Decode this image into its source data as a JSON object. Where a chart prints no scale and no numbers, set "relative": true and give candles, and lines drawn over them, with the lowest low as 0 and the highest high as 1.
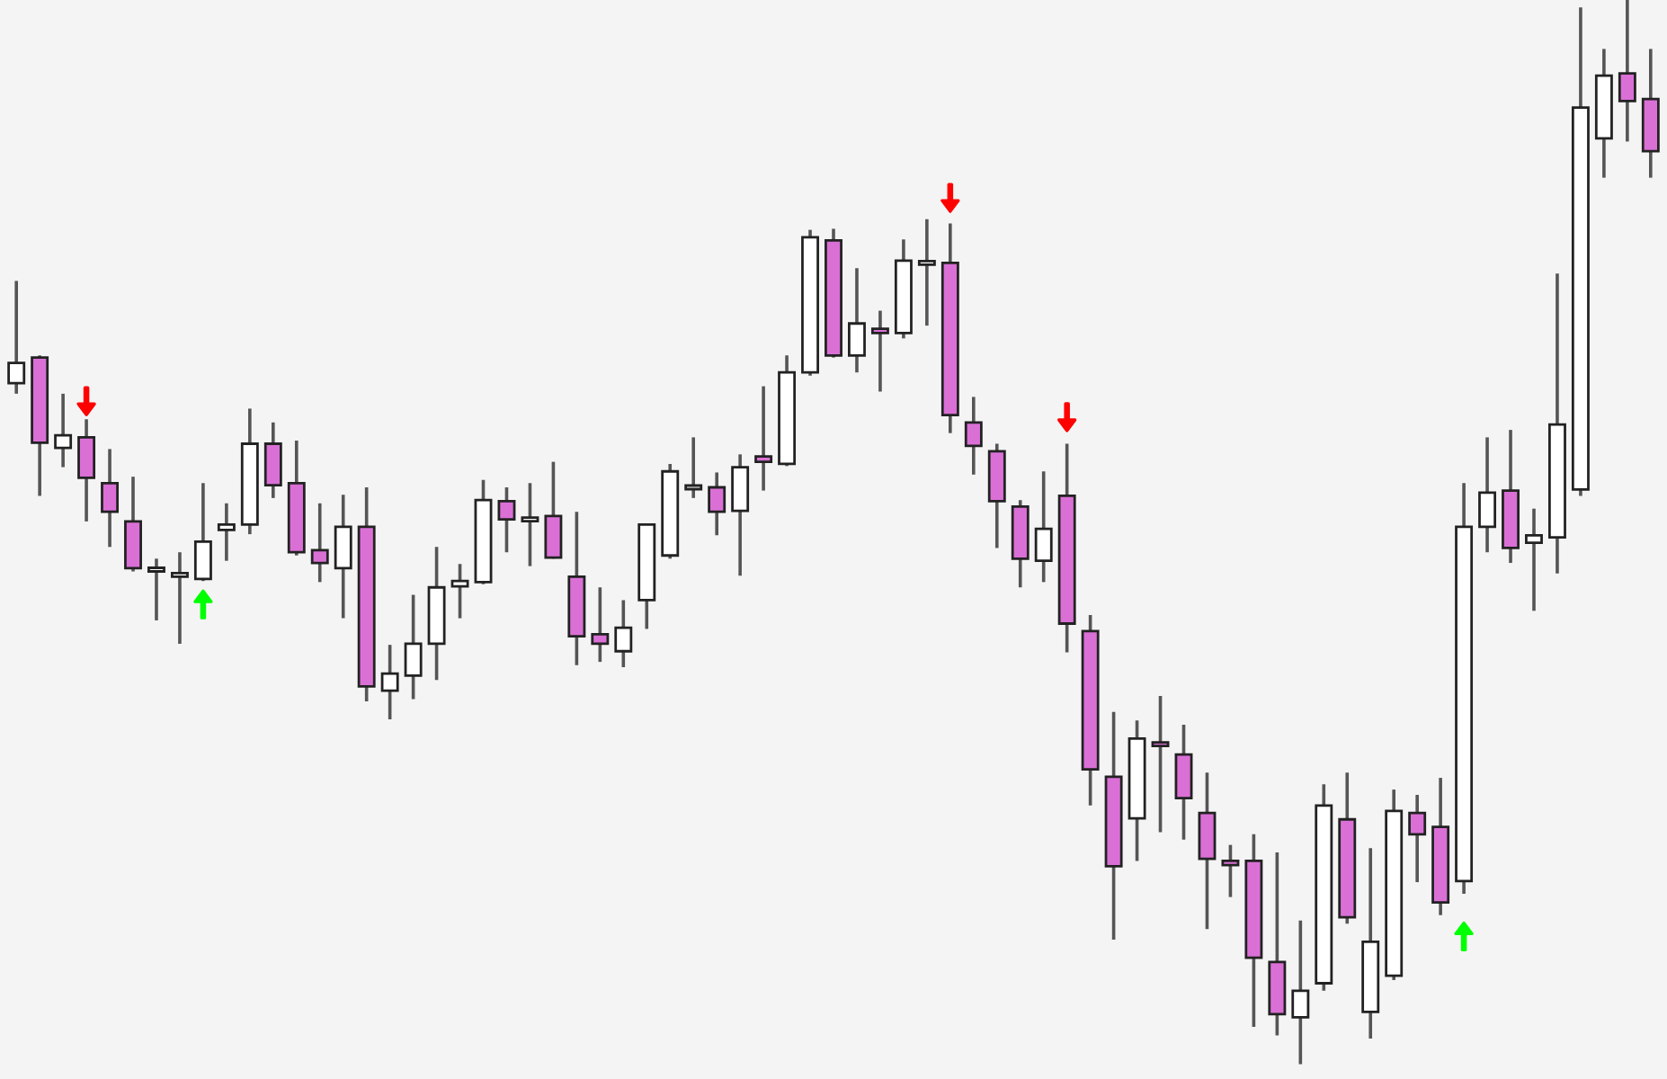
{
  "chart_data": {
    "type": "candlestick",
    "relative": true,
    "categories": [
      null,
      null,
      null,
      null,
      null,
      null,
      null,
      null,
      null,
      null,
      null,
      null,
      null,
      null,
      null,
      null,
      null,
      null,
      null,
      null,
      null,
      null,
      null,
      null,
      null,
      null,
      null,
      null,
      null,
      null,
      null,
      null,
      null,
      null,
      null,
      null,
      null,
      null,
      null,
      null,
      null,
      null,
      null,
      null,
      null,
      null,
      null,
      null,
      null,
      null,
      null,
      null,
      null,
      null,
      null,
      null,
      null,
      null,
      null,
      null,
      null,
      null,
      null,
      null,
      null,
      null,
      null,
      null,
      null,
      null,
      null
    ],
    "ohlc": [
      [
        0.64,
        0.736,
        0.63,
        0.659
      ],
      [
        0.664,
        0.666,
        0.534,
        0.584
      ],
      [
        0.579,
        0.63,
        0.561,
        0.591
      ],
      [
        0.589,
        0.606,
        0.51,
        0.551
      ],
      [
        0.546,
        0.578,
        0.486,
        0.519
      ],
      [
        0.51,
        0.552,
        0.463,
        0.466
      ],
      [
        0.463,
        0.475,
        0.417,
        0.466
      ],
      [
        0.458,
        0.481,
        0.395,
        0.459
      ],
      [
        0.456,
        0.546,
        0.454,
        0.491
      ],
      [
        0.502,
        0.527,
        0.473,
        0.507
      ],
      [
        0.507,
        0.616,
        0.498,
        0.583
      ],
      [
        0.583,
        0.603,
        0.532,
        0.544
      ],
      [
        0.546,
        0.586,
        0.478,
        0.481
      ],
      [
        0.483,
        0.527,
        0.453,
        0.471
      ],
      [
        0.466,
        0.535,
        0.419,
        0.505
      ],
      [
        0.505,
        0.542,
        0.341,
        0.355
      ],
      [
        0.351,
        0.394,
        0.324,
        0.367
      ],
      [
        0.365,
        0.441,
        0.343,
        0.395
      ],
      [
        0.395,
        0.486,
        0.361,
        0.448
      ],
      [
        0.449,
        0.47,
        0.419,
        0.454
      ],
      [
        0.453,
        0.549,
        0.451,
        0.53
      ],
      [
        0.529,
        0.542,
        0.481,
        0.512
      ],
      [
        0.512,
        0.546,
        0.468,
        0.512
      ],
      [
        0.515,
        0.566,
        0.475,
        0.476
      ],
      [
        0.458,
        0.519,
        0.375,
        0.402
      ],
      [
        0.404,
        0.448,
        0.378,
        0.395
      ],
      [
        0.388,
        0.436,
        0.373,
        0.41
      ],
      [
        0.436,
        0.508,
        0.409,
        0.507
      ],
      [
        0.478,
        0.564,
        0.475,
        0.557
      ],
      [
        0.542,
        0.589,
        0.532,
        0.542
      ],
      [
        0.542,
        0.556,
        0.497,
        0.519
      ],
      [
        0.52,
        0.573,
        0.459,
        0.561
      ],
      [
        0.571,
        0.637,
        0.539,
        0.566
      ],
      [
        0.564,
        0.666,
        0.562,
        0.65
      ],
      [
        0.65,
        0.784,
        0.647,
        0.777
      ],
      [
        0.774,
        0.785,
        0.664,
        0.666
      ],
      [
        0.666,
        0.748,
        0.65,
        0.696
      ],
      [
        0.691,
        0.708,
        0.632,
        0.687
      ],
      [
        0.687,
        0.775,
        0.682,
        0.755
      ],
      [
        0.753,
        0.794,
        0.694,
        0.753
      ],
      [
        0.753,
        0.79,
        0.593,
        0.61
      ],
      [
        0.603,
        0.627,
        0.554,
        0.581
      ],
      [
        0.576,
        0.583,
        0.485,
        0.529
      ],
      [
        0.524,
        0.53,
        0.448,
        0.475
      ],
      [
        0.473,
        0.557,
        0.453,
        0.503
      ],
      [
        0.534,
        0.583,
        0.387,
        0.414
      ],
      [
        0.407,
        0.422,
        0.243,
        0.277
      ],
      [
        0.27,
        0.331,
        0.117,
        0.186
      ],
      [
        0.231,
        0.323,
        0.191,
        0.306
      ],
      [
        0.302,
        0.346,
        0.218,
        0.299
      ],
      [
        0.291,
        0.319,
        0.211,
        0.25
      ],
      [
        0.236,
        0.274,
        0.127,
        0.193
      ],
      [
        0.191,
        0.206,
        0.157,
        0.187
      ],
      [
        0.191,
        0.216,
        0.035,
        0.1
      ],
      [
        0.096,
        0.199,
        0.027,
        0.047
      ],
      [
        0.044,
        0.135,
        0.0,
        0.069
      ],
      [
        0.076,
        0.263,
        0.069,
        0.243
      ],
      [
        0.23,
        0.274,
        0.132,
        0.138
      ],
      [
        0.049,
        0.203,
        0.024,
        0.115
      ],
      [
        0.083,
        0.258,
        0.079,
        0.238
      ],
      [
        0.236,
        0.253,
        0.171,
        0.216
      ],
      [
        0.223,
        0.269,
        0.14,
        0.152
      ],
      [
        0.172,
        0.546,
        0.16,
        0.505
      ],
      [
        0.505,
        0.589,
        0.481,
        0.537
      ],
      [
        0.539,
        0.596,
        0.471,
        0.485
      ],
      [
        0.49,
        0.522,
        0.426,
        0.497
      ],
      [
        0.495,
        0.743,
        0.461,
        0.601
      ],
      [
        0.54,
        0.993,
        0.534,
        0.899
      ],
      [
        0.87,
        0.954,
        0.833,
        0.929
      ],
      [
        0.931,
        1.0,
        0.867,
        0.905
      ],
      [
        0.907,
        0.954,
        0.833,
        0.858
      ]
    ],
    "colors": [
      "#ffffff",
      "#da70d6",
      "#ffffff",
      "#da70d6",
      "#da70d6",
      "#da70d6",
      "#ffffff",
      "#ffffff",
      "#ffffff",
      "#ffffff",
      "#ffffff",
      "#da70d6",
      "#da70d6",
      "#da70d6",
      "#ffffff",
      "#da70d6",
      "#ffffff",
      "#ffffff",
      "#ffffff",
      "#ffffff",
      "#ffffff",
      "#da70d6",
      "#ffffff",
      "#da70d6",
      "#da70d6",
      "#da70d6",
      "#ffffff",
      "#ffffff",
      "#ffffff",
      "#ffffff",
      "#da70d6",
      "#ffffff",
      "#da70d6",
      "#ffffff",
      "#ffffff",
      "#da70d6",
      "#ffffff",
      "#da70d6",
      "#ffffff",
      "#ffffff",
      "#da70d6",
      "#da70d6",
      "#da70d6",
      "#da70d6",
      "#ffffff",
      "#da70d6",
      "#da70d6",
      "#da70d6",
      "#ffffff",
      "#da70d6",
      "#da70d6",
      "#da70d6",
      "#da70d6",
      "#da70d6",
      "#da70d6",
      "#ffffff",
      "#ffffff",
      "#da70d6",
      "#ffffff",
      "#ffffff",
      "#da70d6",
      "#da70d6",
      "#ffffff",
      "#ffffff",
      "#da70d6",
      "#ffffff",
      "#ffffff",
      "#ffffff",
      "#ffffff",
      "#da70d6",
      "#da70d6"
    ],
    "series": [
      {
        "type": "scatter",
        "color": "#ff0000",
        "values": [
          null,
          null,
          null,
          0.623,
          null,
          null,
          null,
          null,
          null,
          null,
          null,
          null,
          null,
          null,
          null,
          null,
          null,
          null,
          null,
          null,
          null,
          null,
          null,
          null,
          null,
          null,
          null,
          null,
          null,
          null,
          null,
          null,
          null,
          null,
          null,
          null,
          null,
          null,
          null,
          null,
          0.814,
          null,
          null,
          null,
          null,
          0.608,
          null,
          null,
          null,
          null,
          null,
          null,
          null,
          null,
          null,
          null,
          null,
          null,
          null,
          null,
          null,
          null,
          null,
          null,
          null,
          null,
          null,
          null,
          null,
          null,
          null
        ]
      },
      {
        "type": "scatter",
        "color": "#00ff00",
        "values": [
          null,
          null,
          null,
          null,
          null,
          null,
          null,
          null,
          0.432,
          null,
          null,
          null,
          null,
          null,
          null,
          null,
          null,
          null,
          null,
          null,
          null,
          null,
          null,
          null,
          null,
          null,
          null,
          null,
          null,
          null,
          null,
          null,
          null,
          null,
          null,
          null,
          null,
          null,
          null,
          null,
          null,
          null,
          null,
          null,
          null,
          null,
          null,
          null,
          null,
          null,
          null,
          null,
          null,
          null,
          null,
          null,
          null,
          null,
          null,
          null,
          null,
          null,
          0.12,
          null,
          null,
          null,
          null,
          null,
          null,
          null,
          null
        ]
      }
    ]
  }
}
